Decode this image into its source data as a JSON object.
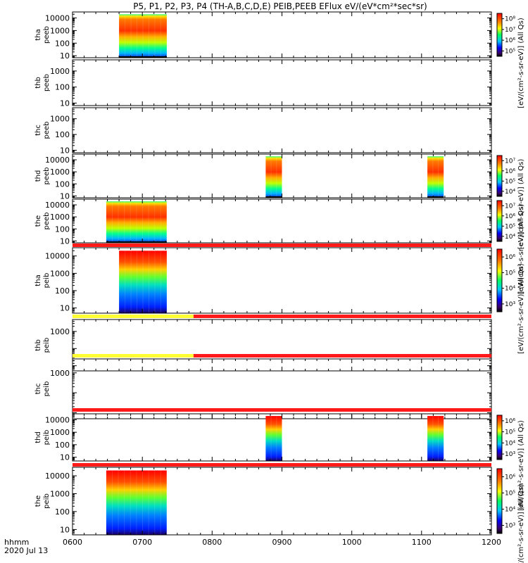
{
  "title": "P5, P1, P2, P3, P4 (TH-A,B,C,D,E) PEIB,PEEB EFlux eV/(eV*cm²*sec*sr)",
  "footer": {
    "time_label": "hhmm",
    "date_label": "2020 Jul 13"
  },
  "colors": {
    "flag_red": "#ff1a1a",
    "flag_yellow": "#ffff33",
    "trace_black": "#000000"
  },
  "chart_data": {
    "type": "heatmap",
    "x_axis": {
      "ticks": [
        "0600",
        "0700",
        "0800",
        "0900",
        "1000",
        "1100",
        "1200"
      ],
      "range": [
        "0600",
        "1200"
      ]
    },
    "panels": [
      {
        "id": "tha-peeb",
        "ylabel": [
          "tha",
          "peeb"
        ],
        "yticks": [
          "10",
          "100",
          "1000",
          "10000"
        ],
        "ylim_ev": [
          7,
          30000
        ],
        "yscale": "log",
        "colorbar": {
          "ticks": [
            "10⁵",
            "10⁶",
            "10⁷",
            "10⁸"
          ],
          "label": "[eV/(cm²-s-sr-eV)] (All Qs)"
        },
        "blocks": [
          {
            "start": "0640",
            "end": "0721",
            "ev_min": 7,
            "ev_max": 20000,
            "style": "electron"
          }
        ]
      },
      {
        "id": "thb-peeb",
        "ylabel": [
          "thb",
          "peeb"
        ],
        "yticks": [
          "10",
          "100",
          "1000"
        ],
        "ylim_ev": [
          7,
          5000
        ],
        "yscale": "log",
        "blocks": []
      },
      {
        "id": "thc-peeb",
        "ylabel": [
          "thc",
          "peeb"
        ],
        "yticks": [
          "10",
          "100",
          "1000"
        ],
        "ylim_ev": [
          7,
          5000
        ],
        "yscale": "log",
        "blocks": []
      },
      {
        "id": "thd-peeb",
        "ylabel": [
          "thd",
          "peeb"
        ],
        "yticks": [
          "10",
          "100",
          "1000",
          "10000"
        ],
        "ylim_ev": [
          7,
          30000
        ],
        "yscale": "log",
        "colorbar": {
          "ticks": [
            "10⁴",
            "10⁵",
            "10⁶",
            "10⁷"
          ],
          "label": "[eV/(cm²-s-sr-eV)] (All Qs)"
        },
        "blocks": [
          {
            "start": "0846",
            "end": "0900",
            "ev_min": 7,
            "ev_max": 20000,
            "style": "electron"
          },
          {
            "start": "1105",
            "end": "1119",
            "ev_min": 7,
            "ev_max": 20000,
            "style": "electron"
          }
        ]
      },
      {
        "id": "the-peeb",
        "ylabel": [
          "the",
          "peeb"
        ],
        "yticks": [
          "10",
          "100",
          "1000",
          "10000"
        ],
        "ylim_ev": [
          7,
          30000
        ],
        "yscale": "log",
        "colorbar": {
          "ticks": [
            "10⁴",
            "10⁵",
            "10⁶",
            "10⁷"
          ],
          "label": "[eV/(cm²-s-sr-eV)] (All Qs)"
        },
        "blocks": [
          {
            "start": "0629",
            "end": "0721",
            "ev_min": 7,
            "ev_max": 20000,
            "style": "electron"
          }
        ]
      },
      {
        "id": "tha-peib",
        "ylabel": [
          "tha",
          "peib"
        ],
        "yticks": [
          "10",
          "100",
          "1000",
          "10000"
        ],
        "ylim_ev": [
          5,
          30000
        ],
        "yscale": "log",
        "colorbar": {
          "ticks": [
            "10³",
            "10⁴",
            "10⁵",
            "10⁶"
          ],
          "label": "[eV/(cm²-s-sr-eV)] (All Qs)"
        },
        "flag_bar": {
          "segments": [
            {
              "start": "0600",
              "end": "1200",
              "color": "red"
            }
          ]
        },
        "blocks": [
          {
            "start": "0640",
            "end": "0721",
            "ev_min": 5,
            "ev_max": 20000,
            "style": "ion"
          }
        ]
      },
      {
        "id": "thb-peib",
        "ylabel": [
          "thb",
          "peib"
        ],
        "yticks": [
          "1000"
        ],
        "ylim_ev": [
          5,
          5000
        ],
        "yscale": "log",
        "flag_bar": {
          "segments": [
            {
              "start": "0600",
              "end": "0744",
              "color": "yellow"
            },
            {
              "start": "0744",
              "end": "1200",
              "color": "red"
            }
          ]
        },
        "blocks": []
      },
      {
        "id": "thc-peib",
        "ylabel": [
          "thc",
          "peib"
        ],
        "yticks": [
          "1000"
        ],
        "ylim_ev": [
          5,
          5000
        ],
        "yscale": "log",
        "flag_bar": {
          "segments": [
            {
              "start": "0600",
              "end": "0744",
              "color": "yellow"
            },
            {
              "start": "0744",
              "end": "1200",
              "color": "red"
            }
          ]
        },
        "blocks": []
      },
      {
        "id": "thd-peib",
        "ylabel": [
          "thd",
          "peib"
        ],
        "yticks": [
          "10",
          "100",
          "1000",
          "10000"
        ],
        "ylim_ev": [
          5,
          30000
        ],
        "yscale": "log",
        "colorbar": {
          "ticks": [
            "10³",
            "10⁴",
            "10⁵",
            "10⁶"
          ],
          "label": "[eV/(cm²-s-sr-eV)] (All Qs)"
        },
        "flag_bar": {
          "segments": [
            {
              "start": "0600",
              "end": "1200",
              "color": "red"
            }
          ]
        },
        "blocks": [
          {
            "start": "0846",
            "end": "0900",
            "ev_min": 5,
            "ev_max": 20000,
            "style": "ion"
          },
          {
            "start": "1105",
            "end": "1119",
            "ev_min": 5,
            "ev_max": 20000,
            "style": "ion"
          }
        ]
      },
      {
        "id": "the-peib",
        "ylabel": [
          "the",
          "peib"
        ],
        "yticks": [
          "10",
          "100",
          "1000",
          "10000"
        ],
        "ylim_ev": [
          5,
          30000
        ],
        "yscale": "log",
        "colorbar": {
          "ticks": [
            "10³",
            "10⁴",
            "10⁵",
            "10⁶"
          ],
          "label": "[eV/(cm²-s-sr-eV)] (All Qs)"
        },
        "flag_bar": {
          "segments": [
            {
              "start": "0600",
              "end": "1200",
              "color": "red"
            }
          ]
        },
        "blocks": [
          {
            "start": "0629",
            "end": "0721",
            "ev_min": 5,
            "ev_max": 20000,
            "style": "ion"
          }
        ]
      }
    ]
  }
}
